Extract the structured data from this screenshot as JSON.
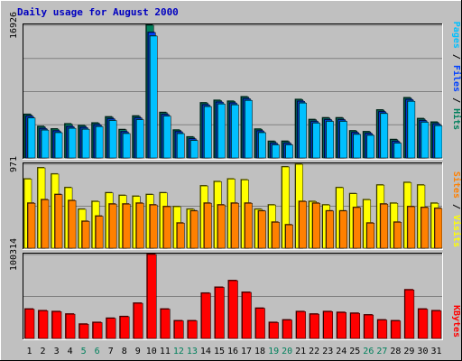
{
  "title": "Daily usage for August 2000",
  "colors": {
    "background": "#c0c0c0",
    "plot": "#c0c0c0",
    "title": "#0000c0",
    "hits": "#00805c",
    "files": "#0040ff",
    "pages": "#00c0ff",
    "visits": "#ffff00",
    "sites": "#ff8000",
    "kbytes": "#ff0000",
    "weekend_tick": "#00805c",
    "weekday_tick": "#000000"
  },
  "side_labels": {
    "pages": "Pages",
    "files": "Files",
    "hits": "Hits",
    "sites": "Sites",
    "visits": "Visits",
    "kbytes": "KBytes",
    "separator": " / "
  },
  "chart_data": [
    {
      "type": "bar",
      "panel": "hits-files-pages",
      "categories": [
        "1",
        "2",
        "3",
        "4",
        "5",
        "6",
        "7",
        "8",
        "9",
        "10",
        "11",
        "12",
        "13",
        "14",
        "15",
        "16",
        "17",
        "18",
        "19",
        "20",
        "21",
        "22",
        "23",
        "24",
        "25",
        "26",
        "27",
        "28",
        "29",
        "30",
        "31"
      ],
      "weekend_days": [
        "5",
        "6",
        "12",
        "13",
        "19",
        "20",
        "26",
        "27"
      ],
      "ymax_label": "16926",
      "ylim": [
        0,
        16926
      ],
      "series": [
        {
          "name": "Hits",
          "values": [
            5540,
            4000,
            3680,
            4330,
            4110,
            4440,
            5220,
            3600,
            5330,
            16926,
            5780,
            3540,
            2660,
            7010,
            7330,
            7220,
            7780,
            3660,
            2100,
            2110,
            7440,
            4880,
            5100,
            5100,
            3440,
            3330,
            6100,
            2330,
            7660,
            5000,
            4550
          ]
        },
        {
          "name": "Files",
          "values": [
            5330,
            3750,
            3440,
            4000,
            3880,
            4220,
            5000,
            3330,
            5110,
            16000,
            5550,
            3330,
            2440,
            6770,
            7110,
            7000,
            7550,
            3440,
            1880,
            1880,
            7220,
            4660,
            4880,
            4880,
            3220,
            3110,
            5880,
            2110,
            7440,
            4770,
            4330
          ]
        },
        {
          "name": "Pages",
          "values": [
            5100,
            3550,
            3220,
            3780,
            3660,
            4000,
            4770,
            3110,
            4880,
            15550,
            5330,
            3100,
            2220,
            6550,
            6880,
            6770,
            7330,
            3220,
            1660,
            1660,
            7000,
            4440,
            4660,
            4660,
            3000,
            2880,
            5660,
            1880,
            7220,
            4550,
            4110
          ]
        }
      ]
    },
    {
      "type": "bar",
      "panel": "visits-sites",
      "categories": [
        "1",
        "2",
        "3",
        "4",
        "5",
        "6",
        "7",
        "8",
        "9",
        "10",
        "11",
        "12",
        "13",
        "14",
        "15",
        "16",
        "17",
        "18",
        "19",
        "20",
        "21",
        "22",
        "23",
        "24",
        "25",
        "26",
        "27",
        "28",
        "29",
        "30",
        "31"
      ],
      "ymax_label": "971",
      "ylim": [
        0,
        971
      ],
      "series": [
        {
          "name": "Visits",
          "values": [
            800,
            929,
            857,
            700,
            450,
            540,
            640,
            610,
            600,
            620,
            640,
            480,
            450,
            720,
            770,
            800,
            790,
            450,
            500,
            940,
            970,
            540,
            500,
            700,
            630,
            560,
            730,
            520,
            760,
            730,
            520
          ]
        },
        {
          "name": "Sites",
          "values": [
            520,
            560,
            620,
            550,
            310,
            370,
            510,
            510,
            520,
            500,
            480,
            290,
            430,
            520,
            500,
            520,
            520,
            430,
            300,
            270,
            540,
            520,
            430,
            430,
            470,
            290,
            510,
            300,
            480,
            470,
            460
          ]
        }
      ]
    },
    {
      "type": "bar",
      "panel": "kbytes",
      "categories": [
        "1",
        "2",
        "3",
        "4",
        "5",
        "6",
        "7",
        "8",
        "9",
        "10",
        "11",
        "12",
        "13",
        "14",
        "15",
        "16",
        "17",
        "18",
        "19",
        "20",
        "21",
        "22",
        "23",
        "24",
        "25",
        "26",
        "27",
        "28",
        "29",
        "30",
        "31"
      ],
      "ymax_label": "100314",
      "ylim": [
        0,
        100314
      ],
      "series": [
        {
          "name": "KBytes",
          "values": [
            35000,
            33000,
            32000,
            29000,
            17000,
            19000,
            24000,
            26000,
            42000,
            100314,
            35000,
            21000,
            21000,
            54000,
            61000,
            69000,
            55000,
            36000,
            19000,
            22000,
            32000,
            29000,
            32000,
            31000,
            30000,
            28000,
            22000,
            21000,
            58000,
            35000,
            33000
          ]
        }
      ]
    }
  ]
}
